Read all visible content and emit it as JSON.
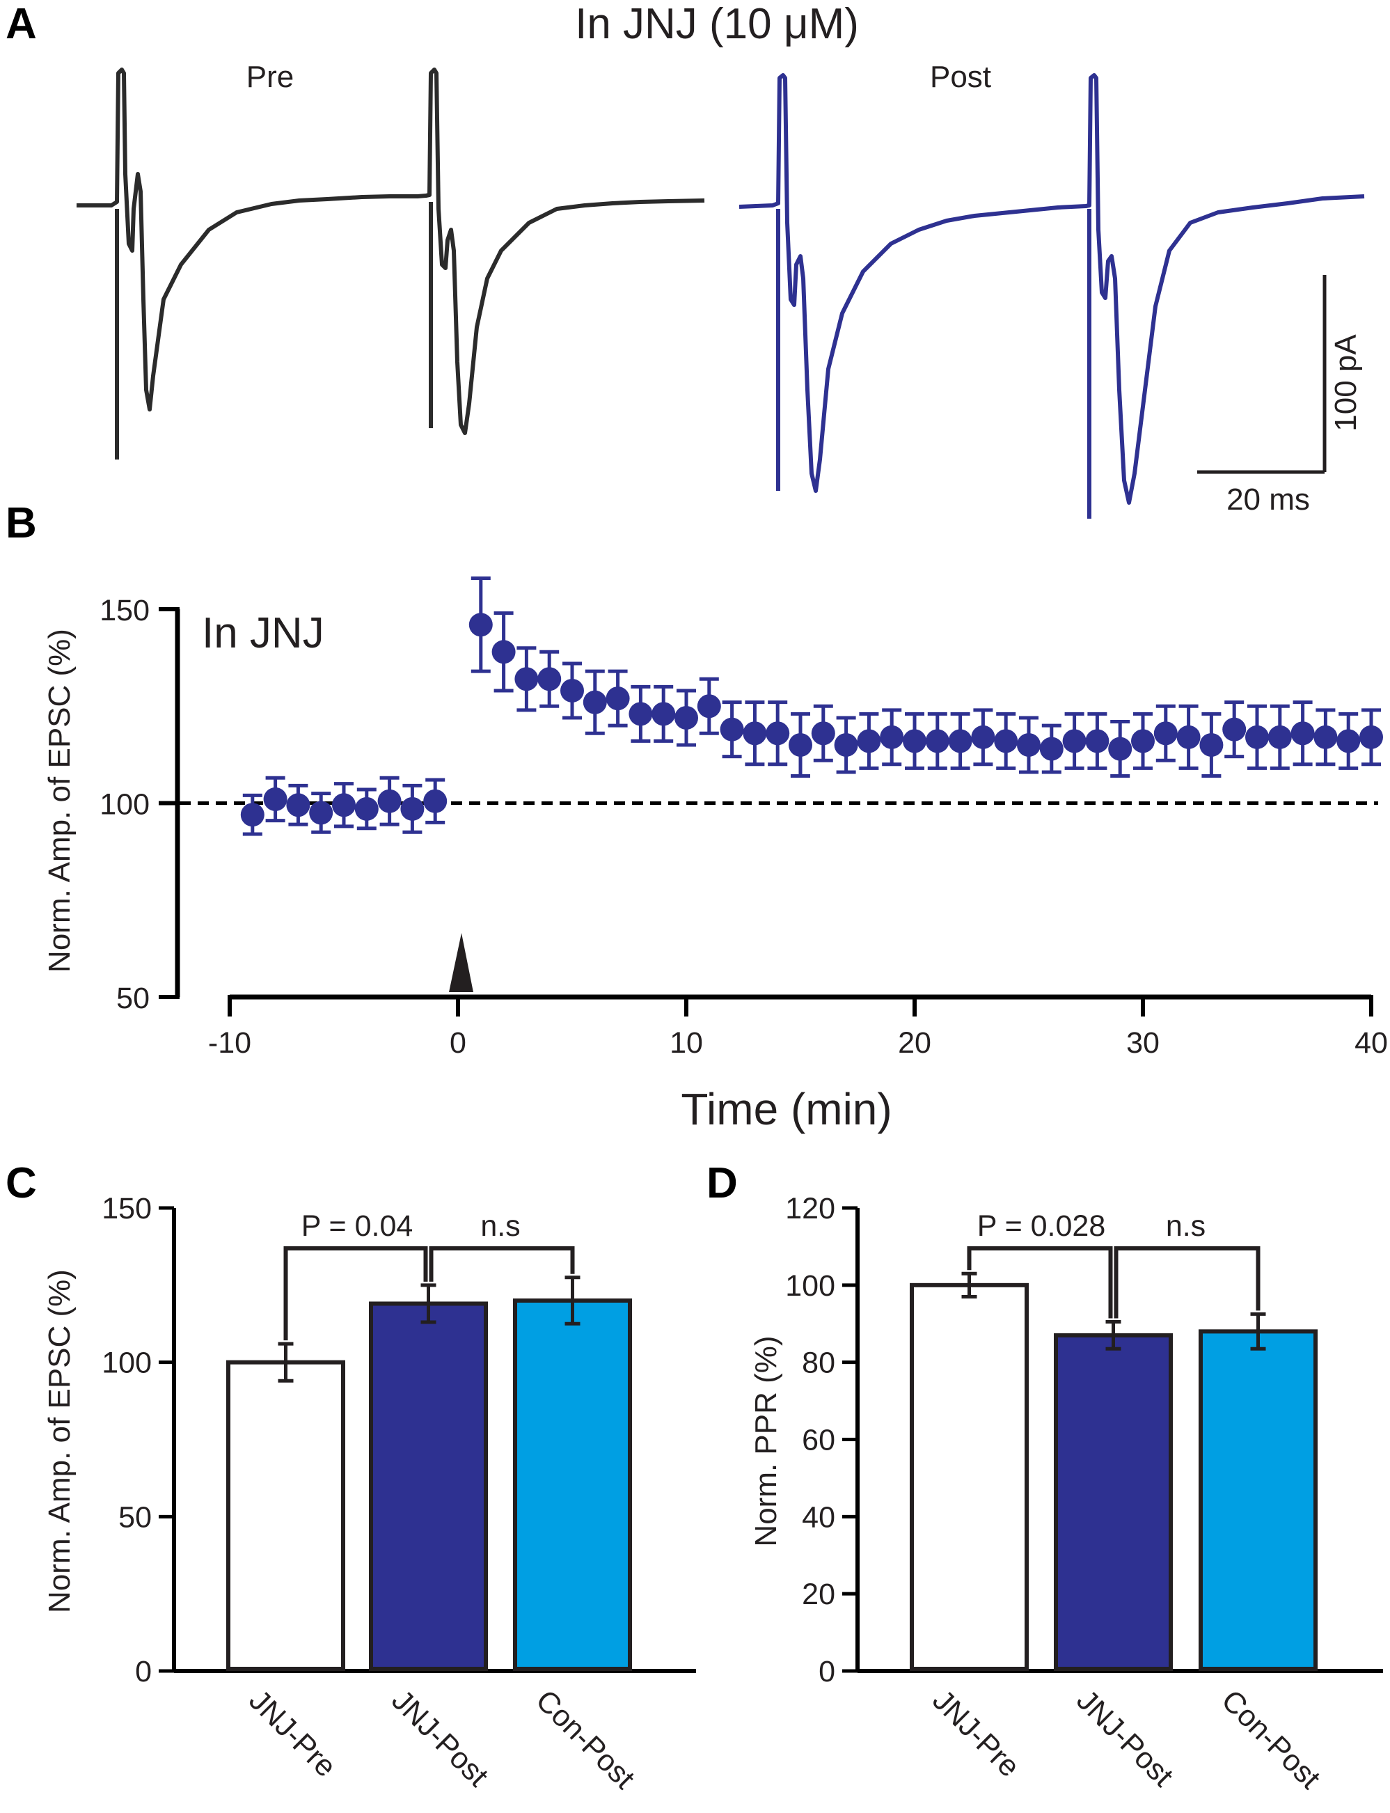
{
  "colors": {
    "pre_trace": "#2b2b2b",
    "post_trace": "#2e3191",
    "timecourse": "#2e3191",
    "bar_pre": "#ffffff",
    "bar_post": "#2e3191",
    "bar_con": "#009fe3",
    "axis": "#231f20"
  },
  "panel_labels": {
    "a": "A",
    "b": "B",
    "c": "C",
    "d": "D"
  },
  "panel_a": {
    "title": "In JNJ (10 μM)",
    "pre_label": "Pre",
    "post_label": "Post",
    "scale_y": "100 pA",
    "scale_x": "20 ms"
  },
  "chart_data": [
    {
      "type": "scatter",
      "panel": "B",
      "inset_label": "In JNJ",
      "xlabel": "Time (min)",
      "ylabel": "Norm. Amp. of EPSC (%)",
      "xlim": [
        -10,
        40
      ],
      "ylim": [
        50,
        150
      ],
      "xticks": [
        "-10",
        "0",
        "10",
        "20",
        "30",
        "40"
      ],
      "yticks": [
        "50",
        "100",
        "150"
      ],
      "baseline": 100,
      "marker": "arrowhead at 0 min",
      "x": [
        -9,
        -8,
        -7,
        -6,
        -5,
        -4,
        -3,
        -2,
        -1,
        1,
        2,
        3,
        4,
        5,
        6,
        7,
        8,
        9,
        10,
        11,
        12,
        13,
        14,
        15,
        16,
        17,
        18,
        19,
        20,
        21,
        22,
        23,
        24,
        25,
        26,
        27,
        28,
        29,
        30,
        31,
        32,
        33,
        34,
        35,
        36,
        37,
        38,
        39,
        40
      ],
      "y": [
        97,
        101,
        99.5,
        97.5,
        99.5,
        98.5,
        100.5,
        98.5,
        100.5,
        146,
        139,
        132,
        132,
        129,
        126,
        127,
        123,
        123,
        122,
        125,
        119,
        118,
        118,
        115,
        118,
        115,
        116,
        117,
        116,
        116,
        116,
        117,
        116,
        115,
        114,
        116,
        116,
        114,
        116,
        118,
        117,
        115,
        119,
        117,
        117,
        118,
        117,
        116,
        117
      ],
      "err": [
        5,
        5.5,
        5,
        5,
        5.5,
        5,
        6,
        6,
        5.5,
        12,
        10,
        8,
        7,
        7,
        8,
        7,
        7,
        7,
        7,
        7,
        7,
        8,
        8,
        8,
        7,
        7,
        7,
        7,
        7,
        7,
        7,
        7,
        7,
        7,
        6,
        7,
        7,
        7,
        7,
        7,
        8,
        8,
        7,
        8,
        8,
        8,
        7,
        7,
        7
      ]
    },
    {
      "type": "bar",
      "panel": "C",
      "ylabel": "Norm. Amp. of EPSC (%)",
      "ylim": [
        0,
        150
      ],
      "yticks": [
        "0",
        "50",
        "100",
        "150"
      ],
      "categories": [
        "JNJ-Pre",
        "JNJ-Post",
        "Con-Post"
      ],
      "values": [
        100,
        119,
        120
      ],
      "err": [
        6,
        6,
        7.5
      ],
      "annotations": [
        {
          "text": "P = 0.04",
          "between": [
            "JNJ-Pre",
            "JNJ-Post"
          ]
        },
        {
          "text": "n.s",
          "between": [
            "JNJ-Post",
            "Con-Post"
          ]
        }
      ]
    },
    {
      "type": "bar",
      "panel": "D",
      "ylabel": "Norm. PPR (%)",
      "ylim": [
        0,
        120
      ],
      "yticks": [
        "0",
        "20",
        "40",
        "60",
        "80",
        "100",
        "120"
      ],
      "categories": [
        "JNJ-Pre",
        "JNJ-Post",
        "Con-Post"
      ],
      "values": [
        100,
        87,
        88
      ],
      "err": [
        3,
        3.5,
        4.5
      ],
      "annotations": [
        {
          "text": "P = 0.028",
          "between": [
            "JNJ-Pre",
            "JNJ-Post"
          ]
        },
        {
          "text": "n.s",
          "between": [
            "JNJ-Post",
            "Con-Post"
          ]
        }
      ]
    }
  ]
}
